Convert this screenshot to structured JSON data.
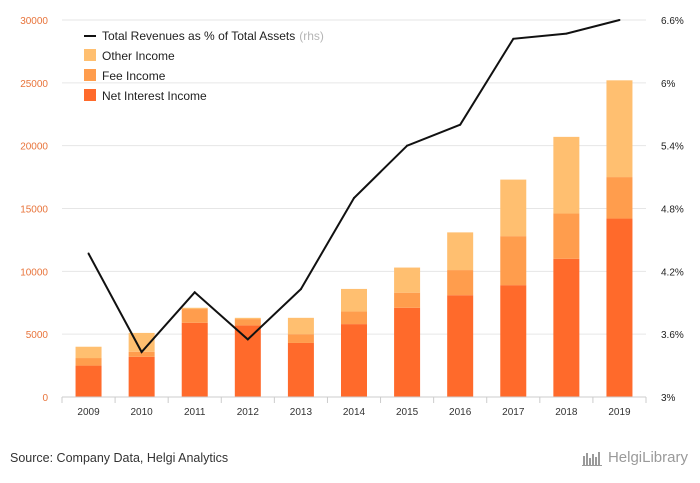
{
  "chart_data": {
    "type": "bar",
    "stacked": true,
    "categories": [
      "2009",
      "2010",
      "2011",
      "2012",
      "2013",
      "2014",
      "2015",
      "2016",
      "2017",
      "2018",
      "2019"
    ],
    "series": [
      {
        "name": "Net Interest Income",
        "color": "#ff6a2b",
        "values": [
          2500,
          3200,
          5900,
          5700,
          4300,
          5800,
          7100,
          8100,
          8900,
          11000,
          14200
        ]
      },
      {
        "name": "Fee Income",
        "color": "#ff9d4d",
        "values": [
          600,
          400,
          1100,
          500,
          700,
          1000,
          1200,
          2000,
          3900,
          3600,
          3300
        ]
      },
      {
        "name": "Other Income",
        "color": "#ffbf70",
        "values": [
          900,
          1500,
          100,
          100,
          1300,
          1800,
          2000,
          3000,
          4500,
          6100,
          7700
        ]
      }
    ],
    "line": {
      "name": "Total Revenues as % of Total Assets",
      "suffix": "(rhs)",
      "color": "#111111",
      "values": [
        4.37,
        3.43,
        4.0,
        3.55,
        4.03,
        4.9,
        5.4,
        5.6,
        6.42,
        6.47,
        6.6
      ]
    },
    "left_axis": {
      "min": 0,
      "max": 30000,
      "ticks": [
        "0",
        "5000",
        "10000",
        "15000",
        "20000",
        "25000",
        "30000"
      ],
      "tick_values": [
        0,
        5000,
        10000,
        15000,
        20000,
        25000,
        30000
      ]
    },
    "right_axis": {
      "min": 3,
      "max": 6.6,
      "ticks": [
        "3%",
        "3.6%",
        "4.2%",
        "4.8%",
        "5.4%",
        "6%",
        "6.6%"
      ],
      "tick_values": [
        3,
        3.6,
        4.2,
        4.8,
        5.4,
        6.0,
        6.6
      ]
    },
    "legend_position": "top-left",
    "grid": true
  },
  "legend": {
    "line_label": "Total Revenues as % of Total Assets",
    "line_suffix": "(rhs)",
    "items": [
      "Other Income",
      "Fee Income",
      "Net Interest Income"
    ]
  },
  "footer": {
    "source": "Source: Company Data, Helgi Analytics",
    "brand": "HelgiLibrary"
  }
}
